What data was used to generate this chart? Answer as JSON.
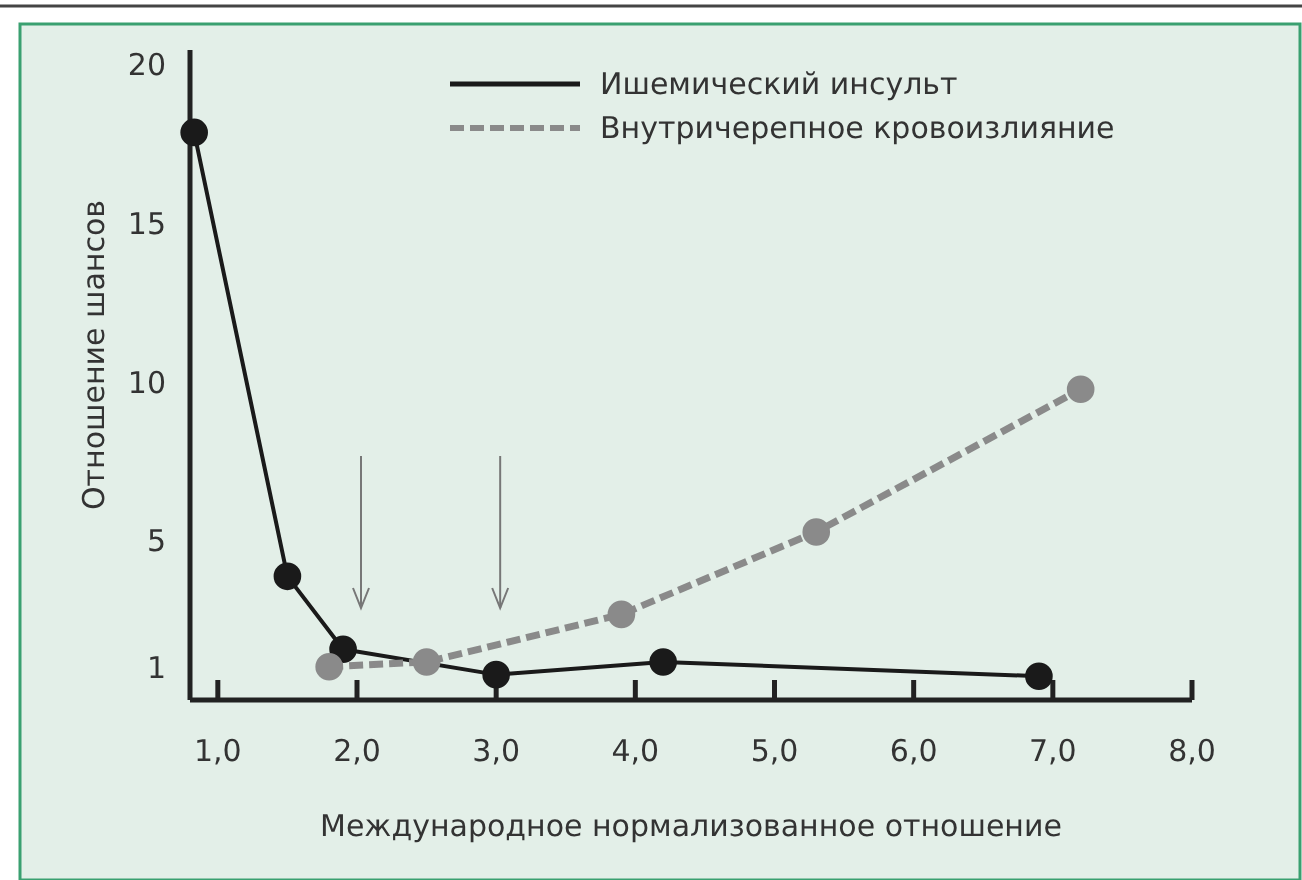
{
  "chart_data": {
    "type": "line",
    "xlabel": "Международное нормализованное отношение",
    "ylabel": "Отношение шансов",
    "xlim": [
      0.8,
      8.0
    ],
    "xticks": [
      {
        "value": 1,
        "label": "1,0"
      },
      {
        "value": 2,
        "label": "2,0"
      },
      {
        "value": 3,
        "label": "3,0"
      },
      {
        "value": 4,
        "label": "4,0"
      },
      {
        "value": 5,
        "label": "5,0"
      },
      {
        "value": 6,
        "label": "6,0"
      },
      {
        "value": 7,
        "label": "7,0"
      },
      {
        "value": 8,
        "label": "8,0"
      }
    ],
    "ylim": [
      0,
      20.5
    ],
    "yticks": [
      1,
      5,
      10,
      15,
      20
    ],
    "grid": false,
    "legend": "top right",
    "marker": "circle",
    "series": [
      {
        "name": "Ишемический инсульт",
        "color": "#1a1a1a",
        "line_style": "solid",
        "x": [
          0.83,
          1.5,
          1.9,
          3.0,
          4.2,
          6.9
        ],
        "values": [
          17.9,
          3.9,
          1.6,
          0.8,
          1.2,
          0.75
        ]
      },
      {
        "name": "Внутричерепное кровоизлияние",
        "color": "#8a8a8a",
        "line_style": "dashed",
        "x": [
          1.8,
          2.5,
          3.9,
          5.3,
          7.2
        ],
        "values": [
          1.05,
          1.2,
          2.7,
          5.3,
          9.8
        ]
      }
    ]
  }
}
